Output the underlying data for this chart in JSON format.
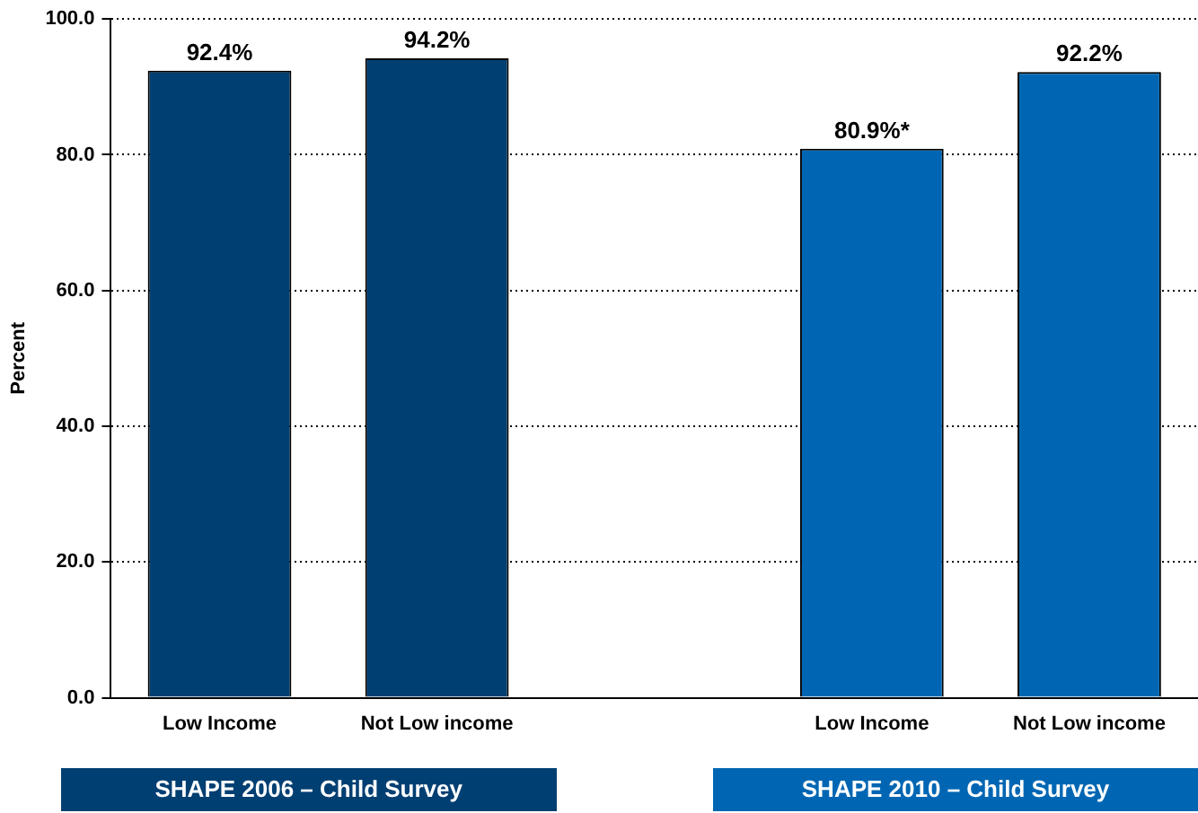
{
  "chart_data": {
    "type": "bar",
    "ylabel": "Percent",
    "categories": [
      "Low Income",
      "Not Low income",
      null,
      "Low Income",
      "Not Low income"
    ],
    "values": [
      92.4,
      94.2,
      null,
      80.9,
      92.2
    ],
    "colors": [
      "#003f72",
      "#003f72",
      "#003f72",
      "#0066b3",
      "#0066b3"
    ],
    "value_labels": [
      "92.4%",
      "94.2%",
      null,
      "80.9%*",
      "92.2%"
    ],
    "ylim": [
      0,
      100
    ],
    "yticks": [
      {
        "value": 0,
        "label": "0.0"
      },
      {
        "value": 20,
        "label": "20.0"
      },
      {
        "value": 40,
        "label": "40.0"
      },
      {
        "value": 60,
        "label": "60.0"
      },
      {
        "value": 80,
        "label": "80.0"
      },
      {
        "value": 100,
        "label": "100.0"
      }
    ],
    "grid": "y",
    "line_style": "dotted",
    "annotations": [
      "SHAPE 2006 – Child Survey",
      "SHAPE 2010 – Child Survey"
    ]
  }
}
